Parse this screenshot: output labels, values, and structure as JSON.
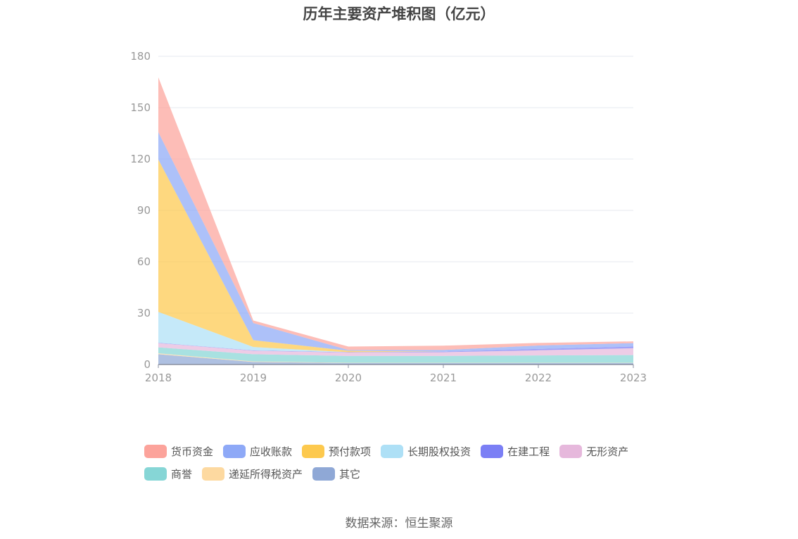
{
  "chart_data": {
    "type": "area",
    "title": "历年主要资产堆积图（亿元）",
    "stacked": true,
    "x": [
      "2018",
      "2019",
      "2020",
      "2021",
      "2022",
      "2023"
    ],
    "ylim": [
      0,
      180
    ],
    "yticks": [
      0,
      30,
      60,
      90,
      120,
      150,
      180
    ],
    "grid": true,
    "legend_position": "bottom",
    "series": [
      {
        "name": "其它",
        "color": "#8fa8d6",
        "values": [
          6,
          1.5,
          0.8,
          0.8,
          0.8,
          0.8
        ]
      },
      {
        "name": "递延所得税资产",
        "color": "#fdd9a0",
        "values": [
          0.5,
          0.3,
          0.2,
          0.2,
          0.2,
          0.2
        ]
      },
      {
        "name": "商誉",
        "color": "#86d6d6",
        "values": [
          3.5,
          4.2,
          4.0,
          4.0,
          4.3,
          4.5
        ]
      },
      {
        "name": "无形资产",
        "color": "#e6b8dc",
        "values": [
          2.5,
          2.0,
          2.0,
          2.2,
          3.0,
          4.0
        ]
      },
      {
        "name": "在建工程",
        "color": "#7b7ff5",
        "values": [
          0.2,
          0.2,
          0.2,
          0.3,
          0.8,
          1.0
        ]
      },
      {
        "name": "长期股权投资",
        "color": "#aee0f6",
        "values": [
          18,
          2.0,
          0,
          0,
          0,
          0
        ]
      },
      {
        "name": "预付款项",
        "color": "#fdc94e",
        "values": [
          89,
          4.0,
          0.8,
          0,
          0,
          0
        ]
      },
      {
        "name": "应收账款",
        "color": "#8ea9f7",
        "values": [
          16,
          10,
          0.5,
          1.0,
          2.0,
          2.0
        ]
      },
      {
        "name": "货币资金",
        "color": "#fca39b",
        "values": [
          32,
          1.5,
          2.0,
          2.5,
          1.5,
          1.0
        ]
      }
    ],
    "legend_order": [
      "货币资金",
      "应收账款",
      "预付款项",
      "长期股权投资",
      "在建工程",
      "无形资产",
      "商誉",
      "递延所得税资产",
      "其它"
    ]
  },
  "source": "数据来源：恒生聚源"
}
